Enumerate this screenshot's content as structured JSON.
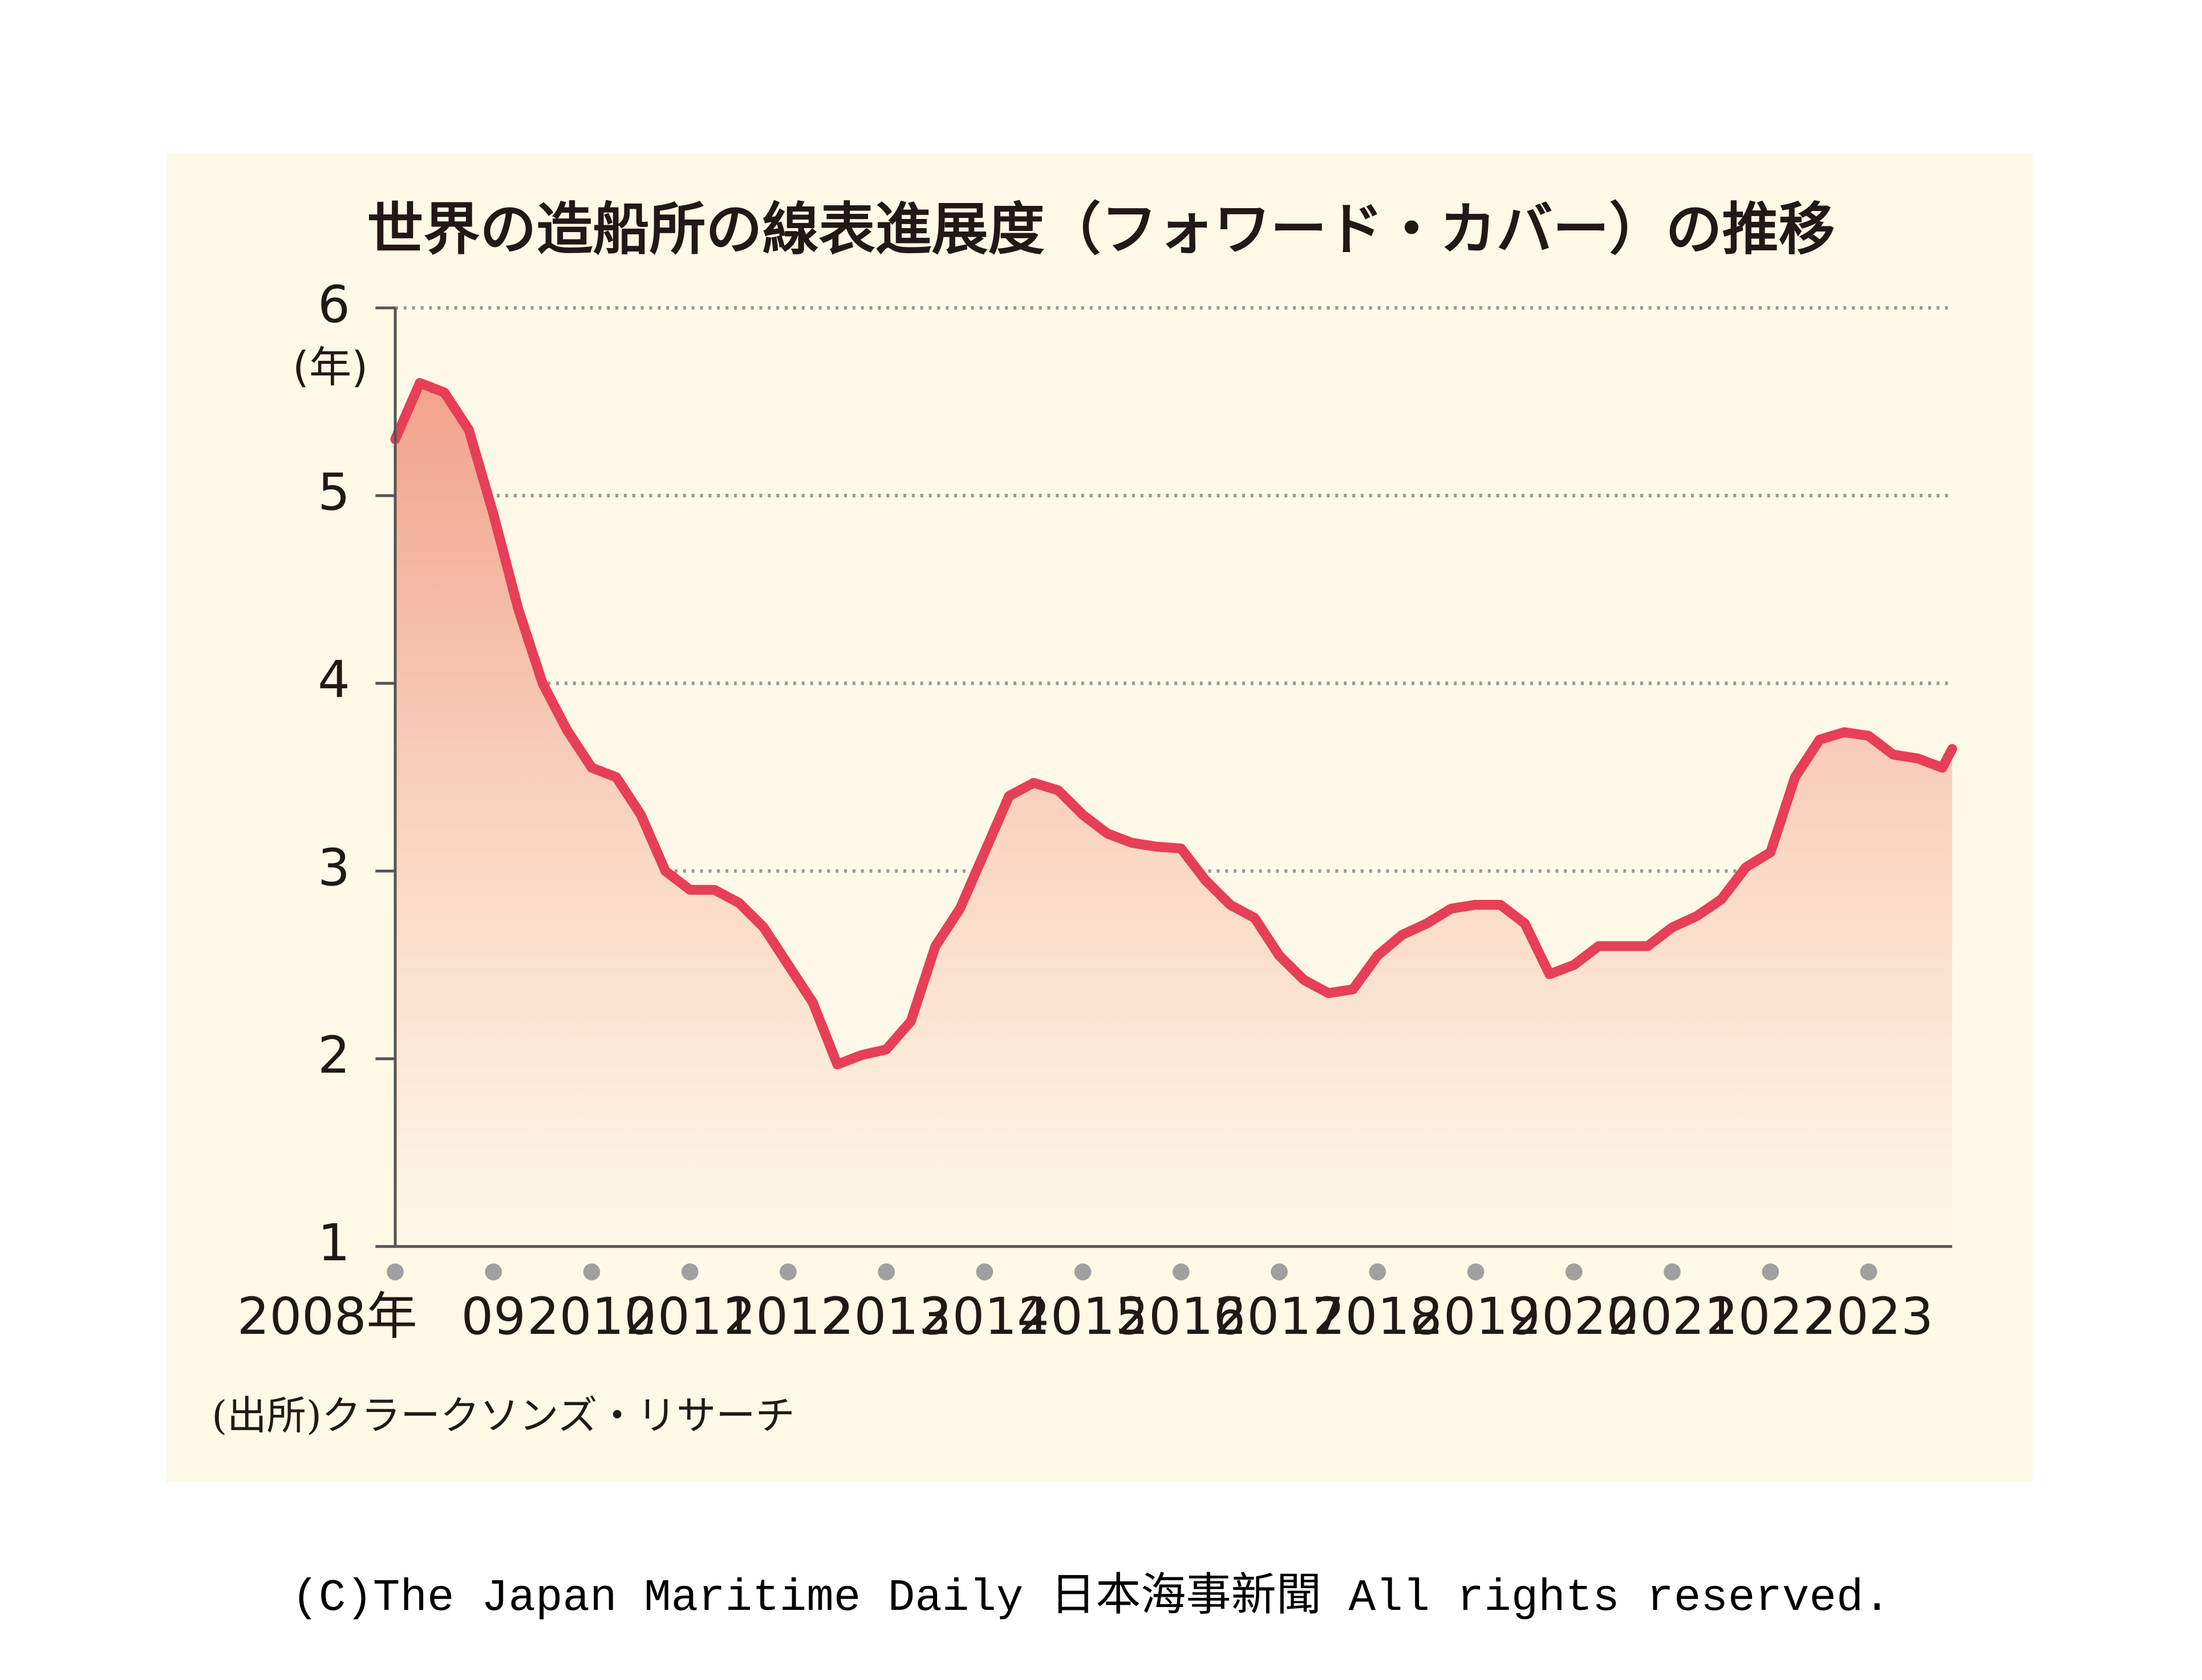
{
  "chart_data": {
    "type": "line",
    "title": "世界の造船所の線表進展度（フォワード・カバー）の推移",
    "y_unit": "(年)",
    "source": "(出所)クラークソンズ・リサーチ",
    "x": [
      2008,
      2008.25,
      2008.5,
      2008.75,
      2009,
      2009.25,
      2009.5,
      2009.75,
      2010,
      2010.25,
      2010.5,
      2010.75,
      2011,
      2011.25,
      2011.5,
      2011.75,
      2012,
      2012.25,
      2012.5,
      2012.75,
      2013,
      2013.25,
      2013.5,
      2013.75,
      2014,
      2014.25,
      2014.5,
      2014.75,
      2015,
      2015.25,
      2015.5,
      2015.75,
      2016,
      2016.25,
      2016.5,
      2016.75,
      2017,
      2017.25,
      2017.5,
      2017.75,
      2018,
      2018.25,
      2018.5,
      2018.75,
      2019,
      2019.25,
      2019.5,
      2019.75,
      2020,
      2020.25,
      2020.5,
      2020.75,
      2021,
      2021.25,
      2021.5,
      2021.75,
      2022,
      2022.25,
      2022.5,
      2022.75,
      2023,
      2023.25,
      2023.5,
      2023.75,
      2023.85
    ],
    "series": [
      {
        "name": "線表進展度",
        "color": "#e63f57",
        "values": [
          5.3,
          5.6,
          5.55,
          5.35,
          4.9,
          4.4,
          4.0,
          3.75,
          3.55,
          3.5,
          3.3,
          3.0,
          2.9,
          2.9,
          2.83,
          2.7,
          2.5,
          2.3,
          1.97,
          2.02,
          2.05,
          2.2,
          2.6,
          2.8,
          3.1,
          3.4,
          3.47,
          3.43,
          3.3,
          3.2,
          3.15,
          3.13,
          3.12,
          2.95,
          2.82,
          2.75,
          2.55,
          2.42,
          2.35,
          2.37,
          2.55,
          2.66,
          2.72,
          2.8,
          2.82,
          2.82,
          2.72,
          2.45,
          2.5,
          2.6,
          2.6,
          2.6,
          2.7,
          2.76,
          2.85,
          3.02,
          3.1,
          3.5,
          3.7,
          3.74,
          3.72,
          3.62,
          3.6,
          3.55,
          3.65
        ]
      }
    ],
    "xlim": [
      2008,
      2023.85
    ],
    "xticks": [
      {
        "value": 2008,
        "label": "2008年"
      },
      {
        "value": 2009,
        "label": "09"
      },
      2010,
      2011,
      2012,
      2013,
      2014,
      2015,
      2016,
      2017,
      2018,
      2019,
      2020,
      2021,
      2022,
      2023
    ],
    "ylim": [
      1,
      6
    ],
    "yticks": [
      1,
      2,
      3,
      4,
      5,
      6
    ],
    "grid": true
  },
  "copyright": "(C)The Japan Maritime Daily 日本海事新聞 All rights reserved."
}
